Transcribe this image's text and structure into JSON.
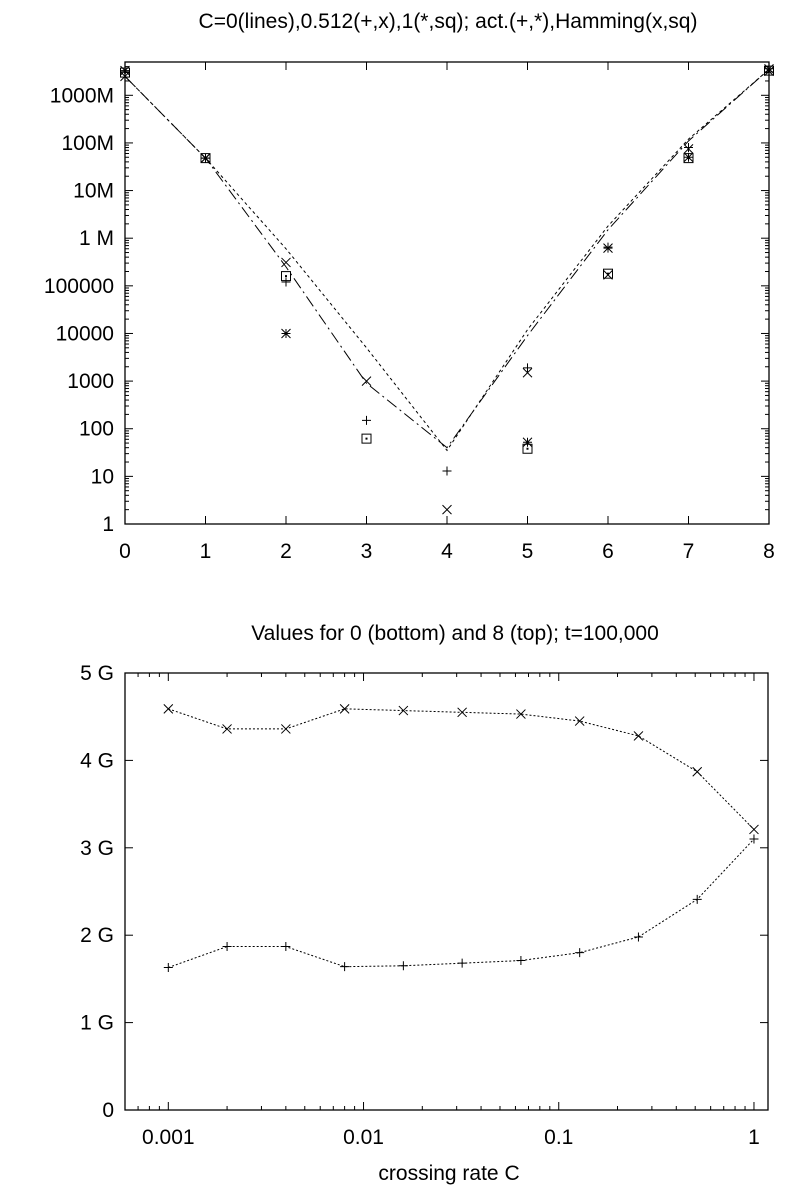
{
  "chart_data": [
    {
      "type": "line",
      "title": "C=0(lines),0.512(+,x),1(*,sq); act.(+,*),Hamming(x,sq)",
      "xlabel": "",
      "ylabel": "",
      "yscale": "log",
      "xlim": [
        0,
        8
      ],
      "ylim": [
        1,
        5000000000
      ],
      "grid": false,
      "x_ticks": [
        "0",
        "1",
        "2",
        "3",
        "4",
        "5",
        "6",
        "7",
        "8"
      ],
      "y_ticks": [
        {
          "value": 1,
          "label": "1"
        },
        {
          "value": 10,
          "label": "10"
        },
        {
          "value": 100,
          "label": "100"
        },
        {
          "value": 1000,
          "label": "1000"
        },
        {
          "value": 10000,
          "label": "10000"
        },
        {
          "value": 100000,
          "label": "100000"
        },
        {
          "value": 1000000,
          "label": "1 M"
        },
        {
          "value": 10000000,
          "label": "10M"
        },
        {
          "value": 100000000,
          "label": "100M"
        },
        {
          "value": 1000000000,
          "label": "1000M"
        }
      ],
      "series": [
        {
          "marker": "line",
          "dash": "12,4,2,4",
          "x": [
            0,
            1,
            2,
            3,
            4,
            5,
            6,
            7,
            8
          ],
          "values": [
            2500000000,
            48000000,
            250000,
            900,
            40,
            9000,
            1500000,
            110000000,
            3500000000
          ]
        },
        {
          "marker": "line",
          "dash": "3,3",
          "x": [
            0,
            1,
            2,
            3,
            4,
            5,
            6,
            7,
            8
          ],
          "values": [
            2500000000,
            48000000,
            600000,
            5000,
            35,
            12000,
            1800000,
            120000000,
            3500000000
          ]
        },
        {
          "marker": "plus",
          "x": [
            0,
            1,
            2,
            3,
            4,
            5,
            6,
            7,
            8
          ],
          "values": [
            3100000000,
            48000000,
            120000,
            150,
            13,
            1900,
            650000,
            80000000,
            3100000000
          ]
        },
        {
          "marker": "cross",
          "x": [
            0,
            1,
            2,
            3,
            4,
            5,
            6,
            7,
            8
          ],
          "values": [
            2500000000,
            48000000,
            310000,
            1000,
            2,
            1500,
            170000,
            75000000,
            3200000000
          ]
        },
        {
          "marker": "star",
          "x": [
            0,
            1,
            2,
            3,
            4,
            5,
            6,
            7,
            8
          ],
          "values": [
            3300000000,
            48000000,
            10000,
            null,
            null,
            52,
            620000,
            50000000,
            3600000000
          ]
        },
        {
          "marker": "square",
          "x": [
            0,
            1,
            2,
            3,
            4,
            5,
            6,
            7,
            8
          ],
          "values": [
            3000000000,
            48000000,
            160000,
            62,
            null,
            38,
            180000,
            48000000,
            3300000000
          ]
        }
      ]
    },
    {
      "type": "line",
      "title": "Values for 0 (bottom) and 8 (top); t=100,000",
      "xlabel": "crossing rate C",
      "ylabel": "",
      "xscale": "log",
      "xlim": [
        0.0006,
        1.18
      ],
      "ylim": [
        0,
        5000000000
      ],
      "grid": false,
      "x_ticks": [
        {
          "value": 0.001,
          "label": "0.001"
        },
        {
          "value": 0.01,
          "label": "0.01"
        },
        {
          "value": 0.1,
          "label": "0.1"
        },
        {
          "value": 1,
          "label": "1"
        }
      ],
      "y_ticks": [
        {
          "value": 0,
          "label": "0"
        },
        {
          "value": 1000000000,
          "label": "1 G"
        },
        {
          "value": 2000000000,
          "label": "2 G"
        },
        {
          "value": 3000000000,
          "label": "3 G"
        },
        {
          "value": 4000000000,
          "label": "4 G"
        },
        {
          "value": 5000000000,
          "label": "5 G"
        }
      ],
      "x": [
        0.001,
        0.002,
        0.004,
        0.008,
        0.016,
        0.032,
        0.064,
        0.128,
        0.256,
        0.512,
        1
      ],
      "series": [
        {
          "marker": "cross",
          "values": [
            4590000000,
            4360000000,
            4360000000,
            4590000000,
            4570000000,
            4550000000,
            4530000000,
            4450000000,
            4280000000,
            3870000000,
            3210000000
          ]
        },
        {
          "marker": "plus",
          "values": [
            1630000000,
            1870000000,
            1870000000,
            1640000000,
            1650000000,
            1680000000,
            1710000000,
            1800000000,
            1980000000,
            2410000000,
            3100000000
          ]
        }
      ]
    }
  ]
}
